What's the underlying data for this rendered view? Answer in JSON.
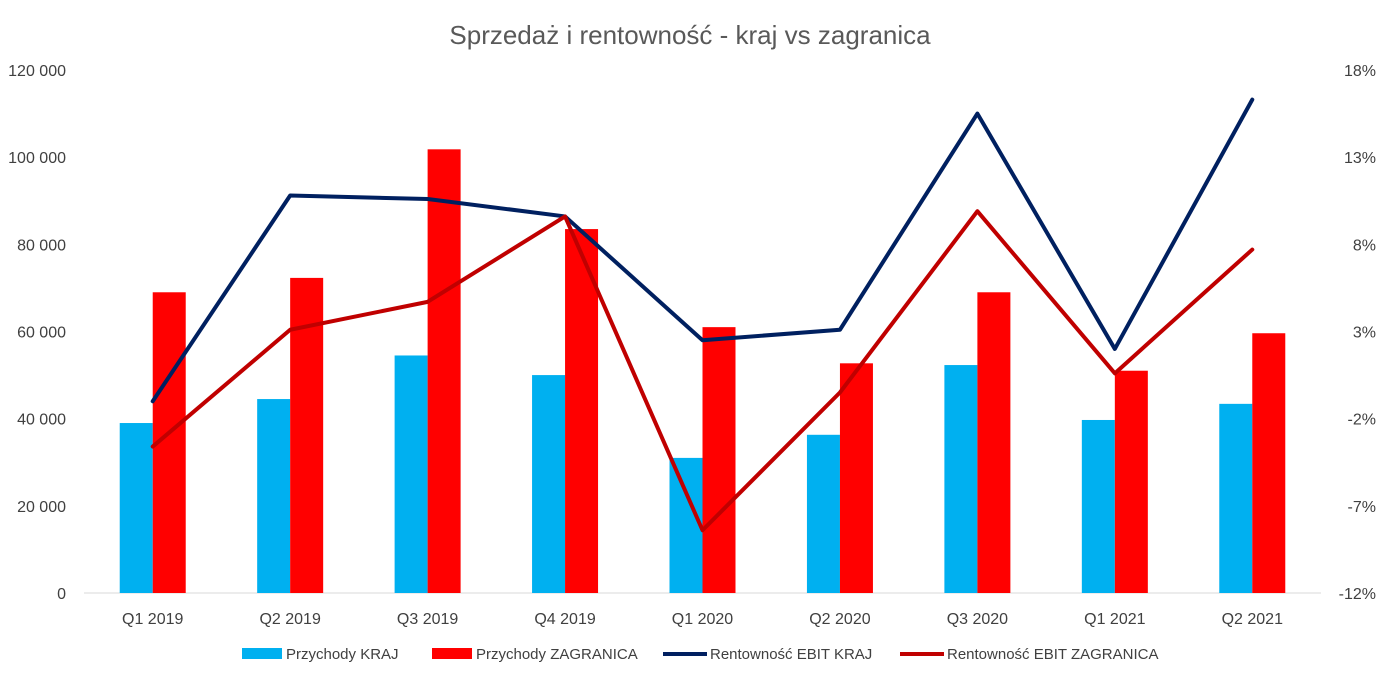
{
  "chart_data": {
    "type": "bar",
    "title": "Sprzedaż i rentowność - kraj vs zagranica",
    "categories": [
      "Q1 2019",
      "Q2 2019",
      "Q3 2019",
      "Q4 2019",
      "Q1 2020",
      "Q2 2020",
      "Q3 2020",
      "Q1 2021",
      "Q2 2021"
    ],
    "y_left": {
      "min": 0,
      "max": 120000,
      "ticks": [
        0,
        20000,
        40000,
        60000,
        80000,
        100000,
        120000
      ],
      "tick_labels": [
        "0",
        "20 000",
        "40 000",
        "60 000",
        "80 000",
        "100 000",
        "120 000"
      ]
    },
    "y_right": {
      "min": -12,
      "max": 18,
      "ticks": [
        -12,
        -7,
        -2,
        3,
        8,
        13,
        18
      ],
      "tick_labels": [
        "-12%",
        "-7%",
        "-2%",
        "3%",
        "8%",
        "13%",
        "18%"
      ]
    },
    "grid": false,
    "legend_position": "bottom",
    "bar_series": [
      {
        "name": "Przychody KRAJ",
        "color": "#00b0f0",
        "axis": "left",
        "values": [
          39000,
          44500,
          54500,
          50000,
          31000,
          36300,
          52300,
          39700,
          43400
        ]
      },
      {
        "name": "Przychody ZAGRANICA",
        "color": "#ff0000",
        "axis": "left",
        "values": [
          69000,
          72300,
          101800,
          83500,
          61000,
          52700,
          69000,
          51000,
          59600
        ]
      }
    ],
    "line_series": [
      {
        "name": "Rentowność EBIT KRAJ",
        "color": "#002060",
        "axis": "right",
        "values": [
          -1.0,
          10.8,
          10.6,
          9.6,
          2.5,
          3.1,
          15.5,
          2.0,
          16.3
        ]
      },
      {
        "name": "Rentowność EBIT ZAGRANICA",
        "color": "#c00000",
        "axis": "right",
        "values": [
          -3.6,
          3.1,
          4.7,
          9.6,
          -8.4,
          -0.5,
          9.9,
          0.6,
          7.7
        ]
      }
    ]
  }
}
